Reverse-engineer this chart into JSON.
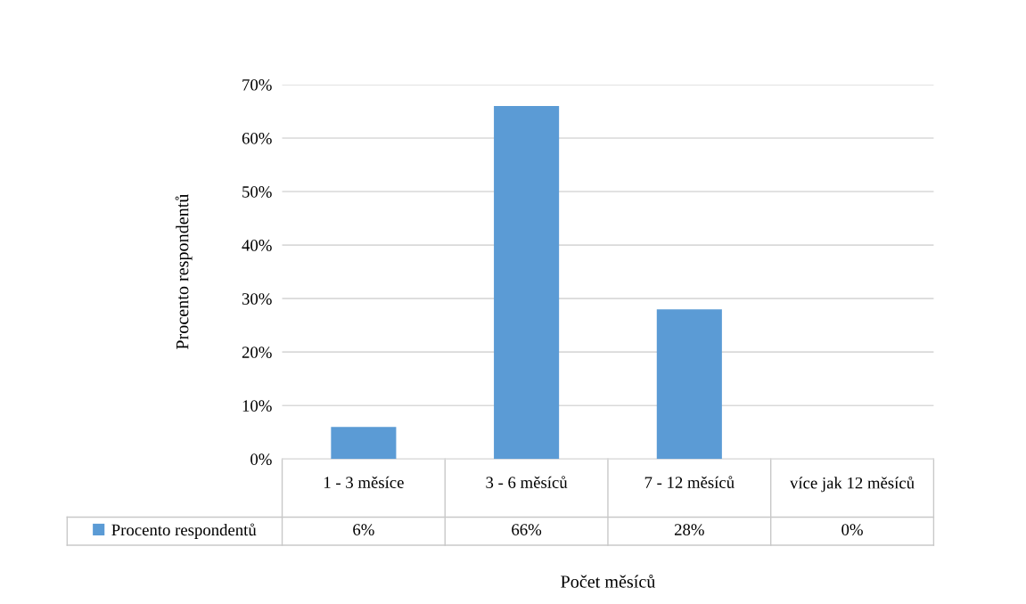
{
  "chart_data": {
    "type": "bar",
    "xlabel": "Počet měsíců",
    "ylabel": "Procento respondentů",
    "categories": [
      "1 - 3 měsíce",
      "3 - 6 měsíců",
      "7 - 12 měsíců",
      "více jak 12 měsíců"
    ],
    "series": [
      {
        "name": "Procento respondentů",
        "color": "#5b9bd5",
        "values": [
          6,
          66,
          28,
          0
        ],
        "value_labels": [
          "6%",
          "66%",
          "28%",
          "0%"
        ]
      }
    ],
    "ylim": [
      0,
      70
    ],
    "yticks": [
      {
        "value": 0,
        "label": "0%"
      },
      {
        "value": 10,
        "label": "10%"
      },
      {
        "value": 20,
        "label": "20%"
      },
      {
        "value": 30,
        "label": "30%"
      },
      {
        "value": 40,
        "label": "40%"
      },
      {
        "value": 50,
        "label": "50%"
      },
      {
        "value": 60,
        "label": "60%"
      },
      {
        "value": 70,
        "label": "70%"
      }
    ],
    "grid": "y",
    "legend": "bottom left"
  }
}
